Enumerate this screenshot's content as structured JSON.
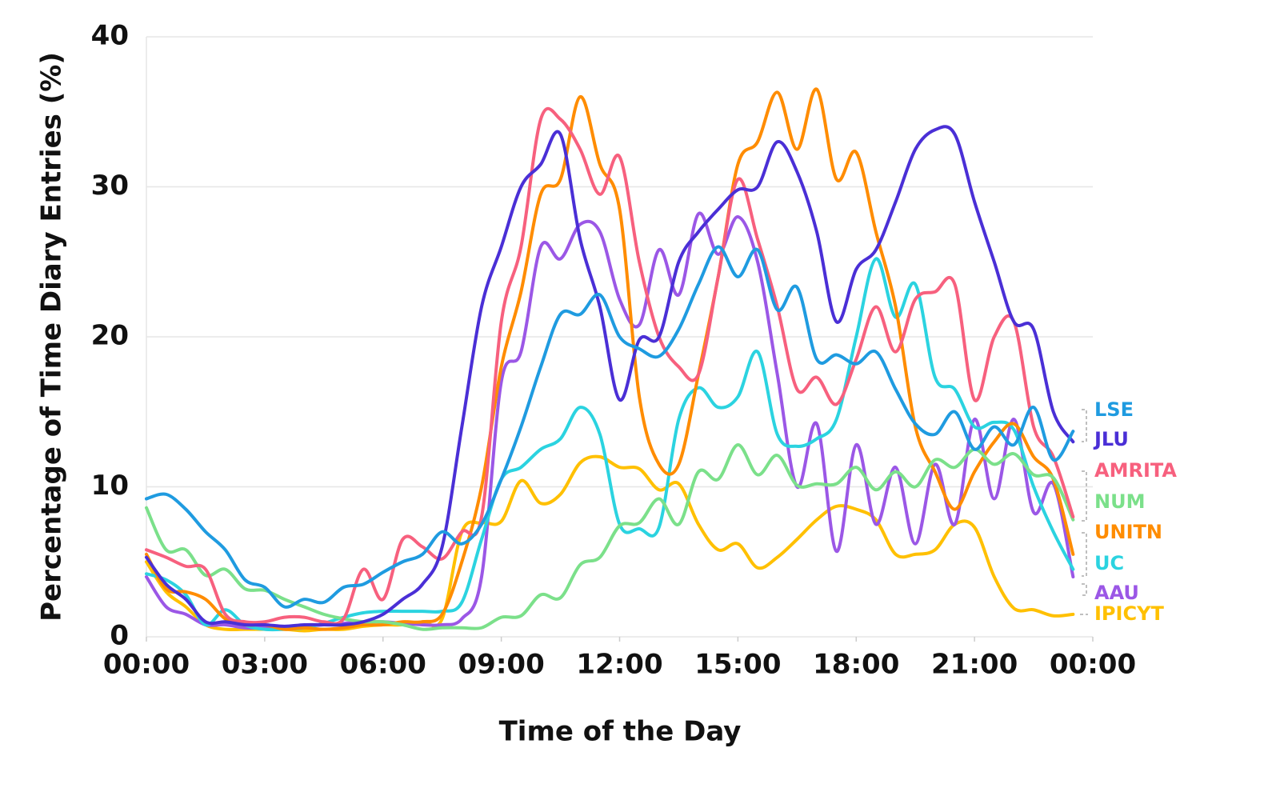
{
  "chart_data": {
    "type": "line",
    "x_label": "Time of the Day",
    "y_label": "Percentage of Time Diary Entries (%)",
    "x": [
      0,
      0.5,
      1,
      1.5,
      2,
      2.5,
      3,
      3.5,
      4,
      4.5,
      5,
      5.5,
      6,
      6.5,
      7,
      7.5,
      8,
      8.5,
      9,
      9.5,
      10,
      10.5,
      11,
      11.5,
      12,
      12.5,
      13,
      13.5,
      14,
      14.5,
      15,
      15.5,
      16,
      16.5,
      17,
      17.5,
      18,
      18.5,
      19,
      19.5,
      20,
      20.5,
      21,
      21.5,
      22,
      22.5,
      23,
      23.5
    ],
    "xlim": [
      0,
      24
    ],
    "xticks": [
      {
        "value": 0,
        "label": "00:00"
      },
      {
        "value": 3,
        "label": "03:00"
      },
      {
        "value": 6,
        "label": "06:00"
      },
      {
        "value": 9,
        "label": "09:00"
      },
      {
        "value": 12,
        "label": "12:00"
      },
      {
        "value": 15,
        "label": "15:00"
      },
      {
        "value": 18,
        "label": "18:00"
      },
      {
        "value": 21,
        "label": "21:00"
      },
      {
        "value": 24,
        "label": "00:00"
      }
    ],
    "ylim": [
      0,
      40
    ],
    "yticks": [
      0,
      10,
      20,
      30,
      40
    ],
    "grid": true,
    "series": [
      {
        "name": "LSE",
        "color": "#1f9be0",
        "values": [
          9.2,
          9.5,
          8.5,
          7,
          5.8,
          3.8,
          3.3,
          2,
          2.5,
          2.3,
          3.3,
          3.5,
          4.3,
          5,
          5.5,
          7,
          6.2,
          7.5,
          10.5,
          14,
          18,
          21.5,
          21.5,
          22.8,
          20,
          19.2,
          18.7,
          20.5,
          23.5,
          26,
          24,
          25.8,
          21.8,
          23.3,
          18.5,
          18.8,
          18.2,
          19,
          16.5,
          14.2,
          13.5,
          15,
          12.5,
          14,
          12.8,
          15.3,
          11.8,
          13.7
        ]
      },
      {
        "name": "JLU",
        "color": "#4a2fd6",
        "values": [
          5.3,
          3.5,
          2.5,
          1,
          1,
          0.8,
          0.8,
          0.7,
          0.8,
          0.8,
          0.8,
          1,
          1.5,
          2.5,
          3.5,
          6,
          14,
          22,
          26,
          30,
          31.5,
          33.5,
          26.5,
          22,
          15.8,
          19.8,
          20,
          25,
          27,
          28.5,
          29.8,
          30,
          33,
          31,
          27,
          21,
          24.5,
          25.8,
          29,
          32.5,
          33.8,
          33.5,
          29,
          25,
          21,
          20.5,
          15,
          13
        ]
      },
      {
        "name": "AMRITA",
        "color": "#f7607e",
        "values": [
          5.8,
          5.3,
          4.7,
          4.5,
          1.5,
          1,
          1,
          1.3,
          1.3,
          1,
          1.2,
          4.5,
          2.5,
          6.5,
          6,
          5.2,
          7,
          8,
          21,
          26,
          34.5,
          34.5,
          32.5,
          29.5,
          32,
          25,
          20,
          18,
          17.5,
          24,
          30.5,
          26.5,
          22,
          16.5,
          17.3,
          15.5,
          18.5,
          22,
          19,
          22.5,
          23,
          23.5,
          15.8,
          20,
          21,
          14,
          12,
          8
        ]
      },
      {
        "name": "NUM",
        "color": "#7be08a",
        "values": [
          8.6,
          5.8,
          5.8,
          4.1,
          4.5,
          3.2,
          3.1,
          2.5,
          2,
          1.5,
          1.2,
          1,
          1,
          0.8,
          0.5,
          0.6,
          0.6,
          0.6,
          1.3,
          1.4,
          2.8,
          2.6,
          4.8,
          5.3,
          7.4,
          7.6,
          9.2,
          7.5,
          11,
          10.5,
          12.8,
          10.8,
          12.1,
          10.1,
          10.2,
          10.2,
          11.3,
          9.8,
          11,
          10,
          11.8,
          11.3,
          12.5,
          11.5,
          12.2,
          10.8,
          10.6,
          7.8
        ]
      },
      {
        "name": "UNITN",
        "color": "#ff8c00",
        "values": [
          5.5,
          3.2,
          3,
          2.5,
          1.2,
          0.8,
          0.8,
          0.5,
          0.6,
          0.5,
          0.6,
          0.8,
          0.8,
          1,
          1,
          1.5,
          5,
          10,
          18,
          23,
          29.5,
          30.5,
          36,
          31.5,
          28.5,
          16,
          11.5,
          11.5,
          17.5,
          24,
          31.5,
          33,
          36.3,
          32.5,
          36.5,
          30.5,
          32.3,
          27,
          22,
          14,
          11,
          8.5,
          11,
          13,
          14.2,
          12,
          10.5,
          5.5
        ]
      },
      {
        "name": "UC",
        "color": "#2bd3e0",
        "values": [
          4.2,
          3.8,
          2.8,
          0.8,
          1.8,
          0.8,
          0.5,
          0.5,
          0.6,
          0.9,
          1.3,
          1.6,
          1.7,
          1.7,
          1.7,
          1.7,
          2.3,
          6.5,
          10.5,
          11.3,
          12.5,
          13.2,
          15.3,
          13.5,
          7.5,
          7.2,
          7.3,
          14.5,
          16.6,
          15.3,
          16,
          19,
          13.5,
          12.7,
          13.2,
          14.5,
          20,
          25.2,
          21.3,
          23.5,
          17.3,
          16.5,
          14,
          14.3,
          13.8,
          10,
          7,
          4.5
        ]
      },
      {
        "name": "AAU",
        "color": "#9b57e6",
        "values": [
          4,
          2,
          1.5,
          0.8,
          0.8,
          0.6,
          0.6,
          0.6,
          0.7,
          0.8,
          0.9,
          1,
          1,
          0.9,
          0.8,
          0.8,
          1.2,
          4,
          17,
          19,
          26,
          25.2,
          27.5,
          27,
          22.5,
          20.8,
          25.8,
          22.8,
          28.2,
          25.5,
          28,
          25,
          17.5,
          10,
          14.2,
          5.7,
          12.8,
          7.5,
          11.3,
          6.2,
          11.5,
          7.5,
          14.5,
          9.2,
          14.5,
          8.3,
          10.2,
          4
        ]
      },
      {
        "name": "IPICYT",
        "color": "#ffc000",
        "values": [
          5,
          3,
          2,
          0.8,
          0.5,
          0.5,
          0.5,
          0.5,
          0.4,
          0.5,
          0.5,
          0.7,
          0.8,
          0.8,
          1,
          1.2,
          7,
          7.6,
          7.7,
          10.4,
          8.9,
          9.5,
          11.6,
          12,
          11.3,
          11.2,
          9.8,
          10.2,
          7.5,
          5.8,
          6.2,
          4.6,
          5.3,
          6.5,
          7.8,
          8.7,
          8.5,
          7.8,
          5.5,
          5.5,
          5.8,
          7.5,
          7.3,
          4,
          1.9,
          1.8,
          1.4,
          1.5
        ]
      }
    ]
  }
}
